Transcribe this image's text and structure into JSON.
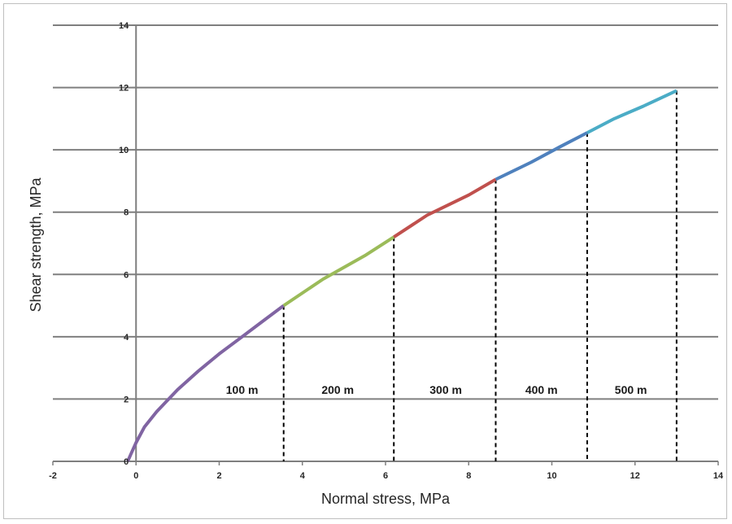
{
  "chart_data": {
    "type": "line",
    "title": "",
    "xlabel": "Normal stress, MPa",
    "ylabel": "Shear strength, MPa",
    "xlim": [
      -2,
      14
    ],
    "ylim": [
      0,
      14
    ],
    "xticks": [
      "-2",
      "0",
      "2",
      "4",
      "6",
      "8",
      "10",
      "12",
      "14"
    ],
    "yticks": [
      "0",
      "2",
      "4",
      "6",
      "8",
      "10",
      "12",
      "14"
    ],
    "grid": "horizontal",
    "series": [
      {
        "color": "#8064a2",
        "x": [
          -0.2,
          -0.1,
          0.0,
          0.2,
          0.5,
          1.0,
          1.5,
          2.0,
          2.5,
          3.0,
          3.55
        ],
        "y": [
          0.0,
          0.3,
          0.6,
          1.1,
          1.6,
          2.3,
          2.9,
          3.45,
          3.95,
          4.45,
          5.0
        ]
      },
      {
        "color": "#9bbb59",
        "x": [
          3.55,
          4.5,
          5.5,
          6.2
        ],
        "y": [
          5.0,
          5.85,
          6.6,
          7.2
        ]
      },
      {
        "color": "#c0504d",
        "x": [
          6.2,
          7.0,
          8.0,
          8.65
        ],
        "y": [
          7.2,
          7.9,
          8.55,
          9.05
        ]
      },
      {
        "color": "#4f81bd",
        "x": [
          8.65,
          9.5,
          10.2,
          10.85
        ],
        "y": [
          9.05,
          9.6,
          10.1,
          10.55
        ]
      },
      {
        "color": "#4bacc6",
        "x": [
          10.85,
          11.5,
          12.2,
          13.0
        ],
        "y": [
          10.55,
          11.0,
          11.4,
          11.9
        ]
      }
    ],
    "boundaries": [
      {
        "x": 3.55,
        "y": 5.0
      },
      {
        "x": 6.2,
        "y": 7.2
      },
      {
        "x": 8.65,
        "y": 9.05
      },
      {
        "x": 10.85,
        "y": 10.55
      },
      {
        "x": 13.0,
        "y": 11.9
      }
    ],
    "zone_labels": [
      {
        "text": "100 m",
        "x": 2.55,
        "y": 2.3
      },
      {
        "text": "200 m",
        "x": 4.85,
        "y": 2.3
      },
      {
        "text": "300 m",
        "x": 7.45,
        "y": 2.3
      },
      {
        "text": "400 m",
        "x": 9.75,
        "y": 2.3
      },
      {
        "text": "500 m",
        "x": 11.9,
        "y": 2.3
      }
    ]
  }
}
